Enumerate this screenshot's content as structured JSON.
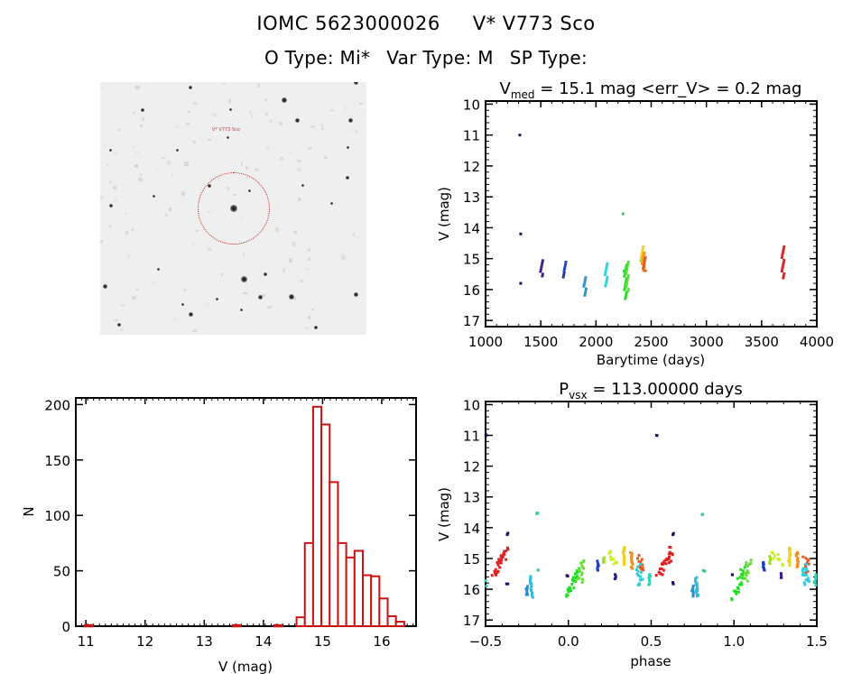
{
  "header": {
    "id_label": "IOMC 5623000026",
    "name_label": "V* V773 Sco",
    "otype": "O Type: Mi*",
    "vartype": "Var Type: M",
    "sptype": "SP Type:"
  },
  "colors": {
    "histogram": "#cc1111",
    "axis": "#000000",
    "finder_circle": "#cc2222"
  },
  "finder_chart": {
    "label_target": "V* V773 Sco",
    "stars": [
      [
        0.34,
        0.02,
        4
      ],
      [
        0.96,
        0.0,
        5
      ],
      [
        0.69,
        0.07,
        6
      ],
      [
        0.16,
        0.11,
        4
      ],
      [
        0.49,
        0.11,
        3
      ],
      [
        0.74,
        0.15,
        5
      ],
      [
        0.94,
        0.15,
        5
      ],
      [
        0.93,
        0.26,
        3
      ],
      [
        0.48,
        0.22,
        3
      ],
      [
        0.29,
        0.27,
        3
      ],
      [
        0.04,
        0.27,
        3
      ],
      [
        0.93,
        0.38,
        4
      ],
      [
        0.41,
        0.41,
        4
      ],
      [
        0.56,
        0.43,
        3
      ],
      [
        0.2,
        0.45,
        3
      ],
      [
        0.04,
        0.49,
        4
      ],
      [
        0.5,
        0.5,
        8
      ],
      [
        0.76,
        0.41,
        3
      ],
      [
        0.22,
        0.74,
        3
      ],
      [
        0.54,
        0.78,
        7
      ],
      [
        0.62,
        0.76,
        4
      ],
      [
        0.02,
        0.81,
        5
      ],
      [
        0.6,
        0.85,
        5
      ],
      [
        0.72,
        0.85,
        6
      ],
      [
        0.96,
        0.84,
        5
      ],
      [
        0.31,
        0.88,
        3
      ],
      [
        0.34,
        0.92,
        5
      ],
      [
        0.44,
        0.86,
        3
      ],
      [
        0.53,
        0.9,
        3
      ],
      [
        0.07,
        0.96,
        4
      ],
      [
        0.81,
        0.97,
        4
      ],
      [
        0.87,
        0.48,
        3
      ]
    ]
  },
  "chart_data": [
    {
      "type": "scatter",
      "title": "V_med = 15.1 mag <err_V> = 0.2 mag",
      "title_main": "V",
      "title_sub": "med",
      "title_rest": " = 15.1 mag <err_V> = 0.2 mag",
      "xlabel": "Barytime (days)",
      "ylabel": "V (mag)",
      "xlim": [
        1000,
        4000
      ],
      "ylim": [
        17.2,
        9.9
      ],
      "y_inverted": true,
      "xticks": [
        1000,
        1500,
        2000,
        2500,
        3000,
        3500,
        4000
      ],
      "yticks": [
        10,
        11,
        12,
        13,
        14,
        15,
        16,
        17
      ],
      "groups": [
        {
          "x": 1310,
          "vmin": 11.0,
          "vmax": 11.0,
          "color": "#2a0a5a"
        },
        {
          "x": 1318,
          "vmin": 14.2,
          "vmax": 14.2,
          "color": "#2a0a5a"
        },
        {
          "x": 1318,
          "vmin": 15.8,
          "vmax": 15.8,
          "color": "#2a0a5a"
        },
        {
          "x": 1505,
          "vmin": 15.05,
          "vmax": 15.6,
          "color": "#3a1a8a"
        },
        {
          "x": 1700,
          "vmin": 15.45,
          "vmax": 15.65,
          "color": "#2233aa"
        },
        {
          "x": 1715,
          "vmin": 15.1,
          "vmax": 15.4,
          "color": "#1a3fc8"
        },
        {
          "x": 1895,
          "vmin": 15.6,
          "vmax": 16.25,
          "color": "#2a8fd0"
        },
        {
          "x": 2090,
          "vmin": 15.15,
          "vmax": 15.9,
          "color": "#27d3d8"
        },
        {
          "x": 2245,
          "vmin": 13.55,
          "vmax": 13.55,
          "color": "#33cc66"
        },
        {
          "x": 2255,
          "vmin": 15.4,
          "vmax": 15.4,
          "color": "#33cc66"
        },
        {
          "x": 2265,
          "vmin": 15.2,
          "vmax": 16.3,
          "color": "#22dd22"
        },
        {
          "x": 2280,
          "vmin": 15.1,
          "vmax": 16.1,
          "color": "#55dd33"
        },
        {
          "x": 2405,
          "vmin": 14.85,
          "vmax": 15.1,
          "color": "#bbe022"
        },
        {
          "x": 2415,
          "vmin": 14.6,
          "vmax": 15.05,
          "color": "#f0d020"
        },
        {
          "x": 2425,
          "vmin": 14.8,
          "vmax": 15.4,
          "color": "#f09020"
        },
        {
          "x": 2435,
          "vmin": 14.95,
          "vmax": 15.45,
          "color": "#e05a20"
        },
        {
          "x": 3690,
          "vmin": 14.6,
          "vmax": 15.65,
          "color": "#dd2222"
        }
      ]
    },
    {
      "type": "bar",
      "title": "",
      "xlabel": "V (mag)",
      "ylabel": "N",
      "xlim": [
        10.83,
        16.58
      ],
      "ylim": [
        0,
        206
      ],
      "xticks": [
        11,
        12,
        13,
        14,
        15,
        16
      ],
      "yticks": [
        0,
        50,
        100,
        150,
        200
      ],
      "bin_width": 0.14,
      "bins": [
        {
          "x0": 10.98,
          "count": 1
        },
        {
          "x0": 13.48,
          "count": 1
        },
        {
          "x0": 14.18,
          "count": 1
        },
        {
          "x0": 14.56,
          "count": 8
        },
        {
          "x0": 14.7,
          "count": 75
        },
        {
          "x0": 14.84,
          "count": 198
        },
        {
          "x0": 14.98,
          "count": 182
        },
        {
          "x0": 15.12,
          "count": 130
        },
        {
          "x0": 15.26,
          "count": 75
        },
        {
          "x0": 15.4,
          "count": 62
        },
        {
          "x0": 15.54,
          "count": 68
        },
        {
          "x0": 15.68,
          "count": 46
        },
        {
          "x0": 15.82,
          "count": 45
        },
        {
          "x0": 15.96,
          "count": 25
        },
        {
          "x0": 16.1,
          "count": 9
        },
        {
          "x0": 16.24,
          "count": 4
        }
      ]
    },
    {
      "type": "scatter",
      "title": "P_vsx = 113.00000 days",
      "title_main": "P",
      "title_sub": "vsx",
      "title_rest": " = 113.00000 days",
      "xlabel": "phase",
      "ylabel": "V (mag)",
      "xlim": [
        -0.5,
        1.5
      ],
      "ylim": [
        17.2,
        9.9
      ],
      "y_inverted": true,
      "xticks": [
        -0.5,
        0.0,
        0.5,
        1.0,
        1.5
      ],
      "xtick_labels": [
        "−0.5",
        "0.0",
        "0.5",
        "1.0",
        "1.5"
      ],
      "yticks": [
        10,
        11,
        12,
        13,
        14,
        15,
        16,
        17
      ],
      "period_days": 113.0,
      "clusters": [
        {
          "p0": -0.455,
          "p1": -0.4,
          "v0": 15.6,
          "v1": 14.9,
          "color": "#dd2222"
        },
        {
          "p0": -0.4,
          "p1": -0.37,
          "v0": 15.1,
          "v1": 14.65,
          "color": "#dd2222"
        },
        {
          "p0": -0.37,
          "p1": -0.37,
          "v0": 14.2,
          "v1": 14.2,
          "color": "#2a0a5a"
        },
        {
          "p0": -0.37,
          "p1": -0.37,
          "v0": 15.8,
          "v1": 15.8,
          "color": "#2a0a5a"
        },
        {
          "p0": -0.5,
          "p1": -0.5,
          "v0": 15.7,
          "v1": 15.9,
          "color": "#27d3b8"
        },
        {
          "p0": -0.5,
          "p1": -0.5,
          "v0": 11.0,
          "v1": 11.0,
          "color": "#2a0a5a"
        },
        {
          "p0": -0.25,
          "p1": -0.25,
          "v0": 15.9,
          "v1": 16.2,
          "color": "#2a8fd0"
        },
        {
          "p0": -0.23,
          "p1": -0.22,
          "v0": 15.6,
          "v1": 16.25,
          "color": "#33bbdd"
        },
        {
          "p0": -0.19,
          "p1": -0.19,
          "v0": 13.55,
          "v1": 13.55,
          "color": "#33cc88"
        },
        {
          "p0": -0.18,
          "p1": -0.18,
          "v0": 15.4,
          "v1": 15.4,
          "color": "#33cc88"
        },
        {
          "p0": 0.0,
          "p1": 0.06,
          "v0": 16.3,
          "v1": 15.3,
          "color": "#22dd22"
        },
        {
          "p0": 0.07,
          "p1": 0.09,
          "v0": 15.7,
          "v1": 15.1,
          "color": "#66dd33"
        },
        {
          "p0": -0.005,
          "p1": -0.005,
          "v0": 15.55,
          "v1": 15.55,
          "color": "#2a0a5a"
        },
        {
          "p0": 0.18,
          "p1": 0.18,
          "v0": 15.1,
          "v1": 15.4,
          "color": "#1a3fc8"
        },
        {
          "p0": 0.215,
          "p1": 0.215,
          "v0": 14.95,
          "v1": 15.15,
          "color": "#99e022"
        },
        {
          "p0": 0.24,
          "p1": 0.29,
          "v0": 14.85,
          "v1": 15.15,
          "color": "#ccee22"
        },
        {
          "p0": 0.285,
          "p1": 0.285,
          "v0": 15.5,
          "v1": 15.65,
          "color": "#3a1a8a"
        },
        {
          "p0": 0.335,
          "p1": 0.335,
          "v0": 14.65,
          "v1": 15.2,
          "color": "#f0d020"
        },
        {
          "p0": 0.38,
          "p1": 0.385,
          "v0": 14.8,
          "v1": 15.3,
          "color": "#f09020"
        },
        {
          "p0": 0.43,
          "p1": 0.45,
          "v0": 14.95,
          "v1": 15.45,
          "color": "#e05a20"
        },
        {
          "p0": 0.42,
          "p1": 0.44,
          "v0": 15.25,
          "v1": 15.9,
          "color": "#33ccdd"
        },
        {
          "p0": 0.49,
          "p1": 0.49,
          "v0": 15.5,
          "v1": 15.85,
          "color": "#27d3b8"
        },
        {
          "p0": 0.53,
          "p1": 0.53,
          "v0": 11.0,
          "v1": 11.0,
          "color": "#2a0a5a"
        },
        {
          "p0": 0.545,
          "p1": 0.6,
          "v0": 15.6,
          "v1": 14.9,
          "color": "#dd2222"
        },
        {
          "p0": 0.6,
          "p1": 0.63,
          "v0": 15.1,
          "v1": 14.65,
          "color": "#dd2222"
        },
        {
          "p0": 0.63,
          "p1": 0.63,
          "v0": 14.2,
          "v1": 14.2,
          "color": "#2a0a5a"
        },
        {
          "p0": 0.63,
          "p1": 0.63,
          "v0": 15.8,
          "v1": 15.8,
          "color": "#2a0a5a"
        },
        {
          "p0": 0.75,
          "p1": 0.75,
          "v0": 15.9,
          "v1": 16.2,
          "color": "#2a8fd0"
        },
        {
          "p0": 0.77,
          "p1": 0.78,
          "v0": 15.6,
          "v1": 16.25,
          "color": "#33bbdd"
        },
        {
          "p0": 0.81,
          "p1": 0.81,
          "v0": 13.55,
          "v1": 13.55,
          "color": "#33cc88"
        },
        {
          "p0": 0.82,
          "p1": 0.82,
          "v0": 15.4,
          "v1": 15.4,
          "color": "#33cc88"
        },
        {
          "p0": 1.0,
          "p1": 1.06,
          "v0": 16.3,
          "v1": 15.3,
          "color": "#22dd22"
        },
        {
          "p0": 1.07,
          "p1": 1.09,
          "v0": 15.7,
          "v1": 15.1,
          "color": "#66dd33"
        },
        {
          "p0": 0.995,
          "p1": 0.995,
          "v0": 15.55,
          "v1": 15.55,
          "color": "#2a0a5a"
        },
        {
          "p0": 1.18,
          "p1": 1.18,
          "v0": 15.1,
          "v1": 15.4,
          "color": "#1a3fc8"
        },
        {
          "p0": 1.215,
          "p1": 1.215,
          "v0": 14.95,
          "v1": 15.15,
          "color": "#99e022"
        },
        {
          "p0": 1.24,
          "p1": 1.29,
          "v0": 14.85,
          "v1": 15.15,
          "color": "#ccee22"
        },
        {
          "p0": 1.285,
          "p1": 1.285,
          "v0": 15.5,
          "v1": 15.65,
          "color": "#3a1a8a"
        },
        {
          "p0": 1.335,
          "p1": 1.335,
          "v0": 14.65,
          "v1": 15.2,
          "color": "#f0d020"
        },
        {
          "p0": 1.38,
          "p1": 1.385,
          "v0": 14.8,
          "v1": 15.3,
          "color": "#f09020"
        },
        {
          "p0": 1.43,
          "p1": 1.45,
          "v0": 14.95,
          "v1": 15.45,
          "color": "#e05a20"
        },
        {
          "p0": 1.42,
          "p1": 1.44,
          "v0": 15.25,
          "v1": 15.9,
          "color": "#33ccdd"
        },
        {
          "p0": 1.49,
          "p1": 1.49,
          "v0": 15.5,
          "v1": 15.85,
          "color": "#27d3b8"
        }
      ]
    }
  ]
}
